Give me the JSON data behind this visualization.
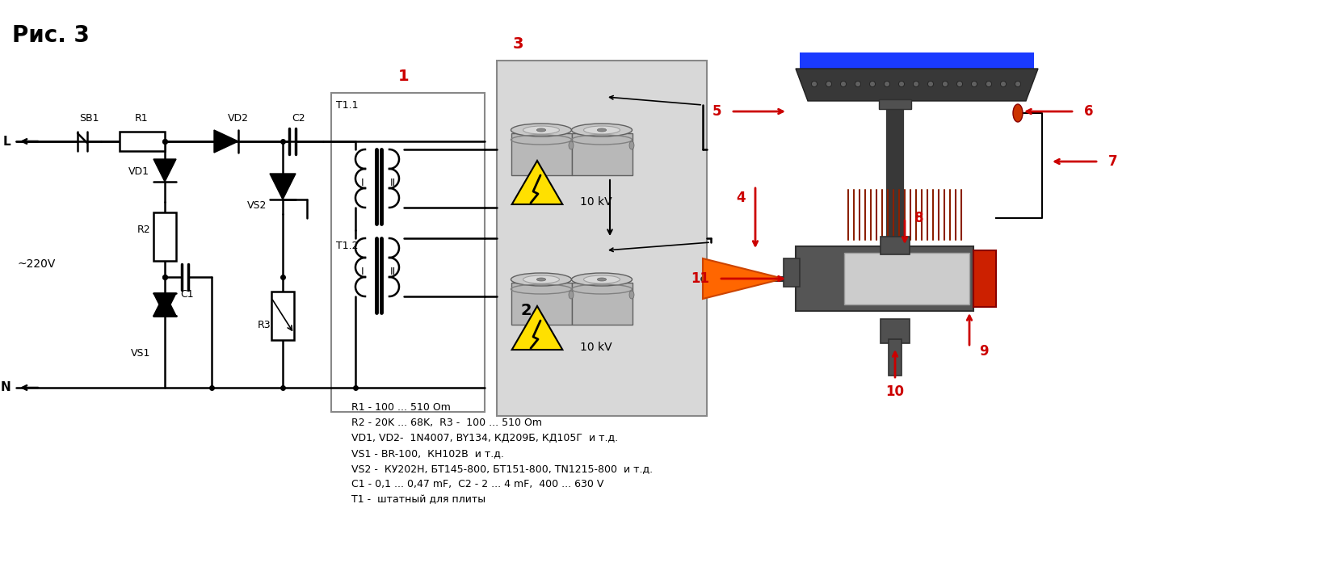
{
  "title": "Рис. 3",
  "bg_color": "#ffffff",
  "black": "#000000",
  "red": "#cc0000",
  "blue": "#1a3aff",
  "orange": "#ff6600",
  "gray_box": "#d8d8d8",
  "gray_dark": "#404040",
  "gray_mid": "#707070",
  "gray_light": "#b0b0b0",
  "cap_silver": "#c0c0c0",
  "cap_ring": "#888888",
  "component_labels": [
    "R1 - 100 ... 510 Om",
    "R2 - 20K ... 68K,  R3 -  100 ... 510 Om",
    "VD1, VD2-  1N4007, BY134, КД209Б, КД105Г  и т.д.",
    "VS1 - BR-100,  КН102В  и т.д.",
    "VS2 -  КУ202Н, БТ145-800, БТ151-800, TN1215-800  и т.д.",
    "C1 - 0,1 ... 0,47 mF,  C2 - 2 ... 4 mF,  400 ... 630 V",
    "T1 -  штатный для плиты"
  ]
}
